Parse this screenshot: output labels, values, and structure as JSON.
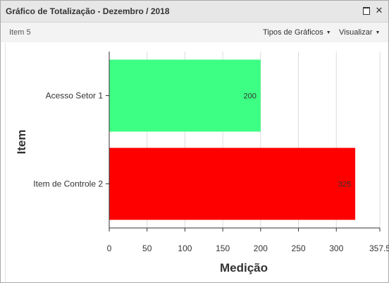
{
  "window": {
    "title": "Gráfico de Totalização - Dezembro / 2018",
    "maximize_icon": "maximize-icon",
    "close_icon": "close-icon",
    "close_glyph": "✕"
  },
  "toolbar": {
    "item_label": "Item 5",
    "chart_types_label": "Tipos de Gráficos",
    "view_label": "Visualizar"
  },
  "chart_data": {
    "type": "bar",
    "orientation": "horizontal",
    "categories": [
      "Acesso Setor 1",
      "Item de Controle 2"
    ],
    "values": [
      200,
      325
    ],
    "colors": [
      "#3dff83",
      "#ff0000"
    ],
    "data_labels": [
      "200",
      "325"
    ],
    "xlabel": "Medição",
    "ylabel": "Item",
    "xlim": [
      0,
      357.5
    ],
    "xticks": [
      0,
      50,
      100,
      150,
      200,
      250,
      300,
      357.5
    ],
    "xtick_labels": [
      "0",
      "50",
      "100",
      "150",
      "200",
      "250",
      "300",
      "357.5"
    ],
    "grid": true
  }
}
